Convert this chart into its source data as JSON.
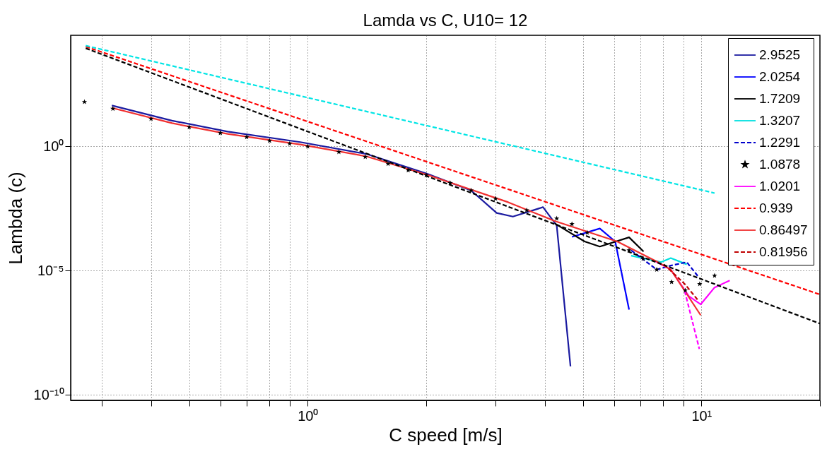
{
  "chart_data": {
    "type": "line",
    "title": "Lamda vs C, U10= 12",
    "xlabel": "C speed [m/s]",
    "ylabel": "Lambda (c)",
    "log": "xy",
    "grid": true,
    "legend": "top right",
    "xlim": [
      0.25,
      20
    ],
    "xticks": [
      {
        "value": 0.3,
        "label": null
      },
      {
        "value": 0.4,
        "label": null
      },
      {
        "value": 0.5,
        "label": null
      },
      {
        "value": 0.6,
        "label": null
      },
      {
        "value": 0.7,
        "label": null
      },
      {
        "value": 0.8,
        "label": null
      },
      {
        "value": 0.9,
        "label": null
      },
      {
        "value": 1,
        "label": "10⁰"
      },
      {
        "value": 2,
        "label": null
      },
      {
        "value": 3,
        "label": null
      },
      {
        "value": 4,
        "label": null
      },
      {
        "value": 5,
        "label": null
      },
      {
        "value": 6,
        "label": null
      },
      {
        "value": 7,
        "label": null
      },
      {
        "value": 8,
        "label": null
      },
      {
        "value": 9,
        "label": null
      },
      {
        "value": 10,
        "label": "10¹"
      },
      {
        "value": 20,
        "label": null
      }
    ],
    "ylim": [
      6e-11,
      30000
    ],
    "yticks": [
      {
        "value": 1e-10,
        "label": "10⁻¹⁰"
      },
      {
        "value": 1e-05,
        "label": "10⁻⁵"
      },
      {
        "value": 1,
        "label": "10⁰"
      }
    ],
    "series": [
      {
        "name": "2.9525",
        "color": "#1a1aa0",
        "type": "line",
        "line_style": "solid",
        "x": [
          0.318,
          0.452,
          0.626,
          0.957,
          1.41,
          2.01,
          2.6,
          3.02,
          3.32,
          3.96,
          4.29,
          4.65
        ],
        "values": [
          45,
          11,
          4,
          1.5,
          0.5,
          0.08,
          0.017,
          0.0021,
          0.0015,
          0.0036,
          0.00066,
          1.4e-09
        ]
      },
      {
        "name": "2.0254",
        "color": "#0000ff",
        "type": "line",
        "line_style": "solid",
        "x": [
          4.69,
          5.52,
          6.04,
          6.55
        ],
        "values": [
          0.00023,
          0.0005,
          0.00015,
          2.7e-07
        ]
      },
      {
        "name": "1.7209",
        "color": "#000000",
        "type": "line",
        "line_style": "solid",
        "x": [
          4.24,
          5.05,
          5.52,
          6.55,
          7.13
        ],
        "values": [
          0.0008,
          0.00015,
          9.3e-05,
          0.00022,
          5.9e-05
        ]
      },
      {
        "name": "1.3207",
        "color": "#00e0e0",
        "type": "line",
        "line_style": "solid",
        "x": [
          6.63,
          7.9,
          8.36,
          9.18
        ],
        "values": [
          4e-05,
          2.2e-05,
          3.2e-05,
          1.8e-05
        ]
      },
      {
        "name": "1.2291",
        "color": "#0000cd",
        "type": "line",
        "line_style": "dashed",
        "x": [
          6.63,
          7.7,
          8.36,
          9.18,
          9.84
        ],
        "values": [
          6.6e-05,
          1.1e-05,
          1.6e-05,
          2.2e-05,
          5.5e-06
        ]
      },
      {
        "name": "1.0878",
        "color": "#000000",
        "type": "scatter",
        "marker": "star",
        "x": [
          0.271,
          0.32,
          0.4,
          0.5,
          0.6,
          0.7,
          0.8,
          0.9,
          1,
          1.2,
          1.4,
          1.6,
          1.8,
          2,
          2.3,
          2.6,
          3,
          3.6,
          4.29,
          4.69,
          5.13,
          6.55,
          7.11,
          7.7,
          8.4,
          9.1,
          9.9,
          10.8
        ],
        "values": [
          62,
          33,
          13,
          6,
          3.5,
          2.4,
          1.7,
          1.3,
          1,
          0.6,
          0.38,
          0.2,
          0.11,
          0.07,
          0.034,
          0.017,
          0.008,
          0.0027,
          0.00126,
          0.00075,
          0.00034,
          6.6e-05,
          3e-05,
          1.1e-05,
          3.5e-06,
          1.6e-06,
          2.9e-06,
          6.3e-06
        ]
      },
      {
        "name": "1.0201",
        "color": "#ff00ff",
        "type": "line",
        "line_style": "solid",
        "x": [
          7.59,
          8.36,
          9.29,
          9.96,
          10.8,
          11.8
        ],
        "values": [
          2.5e-05,
          1.1e-05,
          9.5e-07,
          4.4e-07,
          2.1e-06,
          4e-06
        ]
      },
      {
        "name": "0.939",
        "color": "#ff0000",
        "type": "line",
        "line_style": "dashed",
        "x": [
          0.273,
          20
        ],
        "values": [
          10500,
          1.1e-06
        ]
      },
      {
        "name": "0.86497",
        "color": "#f03030",
        "type": "line",
        "line_style": "solid",
        "x": [
          0.318,
          0.452,
          0.626,
          0.957,
          1.41,
          2.01,
          3.23,
          4.24,
          6.11,
          7.8,
          8.36,
          9.96
        ],
        "values": [
          36,
          8.7,
          3.2,
          1.2,
          0.4,
          0.073,
          0.0057,
          0.001,
          0.00015,
          2.1e-05,
          1.1e-05,
          1.6e-07
        ]
      },
      {
        "name": "0.81956",
        "color": "#c00000",
        "type": "line",
        "line_style": "dashed",
        "x": [
          8.03,
          9.07,
          9.84
        ],
        "values": [
          1.8e-05,
          2.9e-06,
          6e-07
        ]
      },
      {
        "color": "#00e5e5",
        "type": "line",
        "line_style": "dashed",
        "x": [
          0.273,
          10.8
        ],
        "values": [
          11500,
          0.0133
        ]
      },
      {
        "color": "#000000",
        "type": "line",
        "line_style": "dashed",
        "x": [
          0.273,
          20
        ],
        "values": [
          9000,
          7.4e-08
        ]
      },
      {
        "color": "#ff00ff",
        "type": "line",
        "line_style": "dashed",
        "x": [
          9.07,
          9.88
        ],
        "values": [
          1.5e-06,
          7e-09
        ]
      }
    ]
  }
}
